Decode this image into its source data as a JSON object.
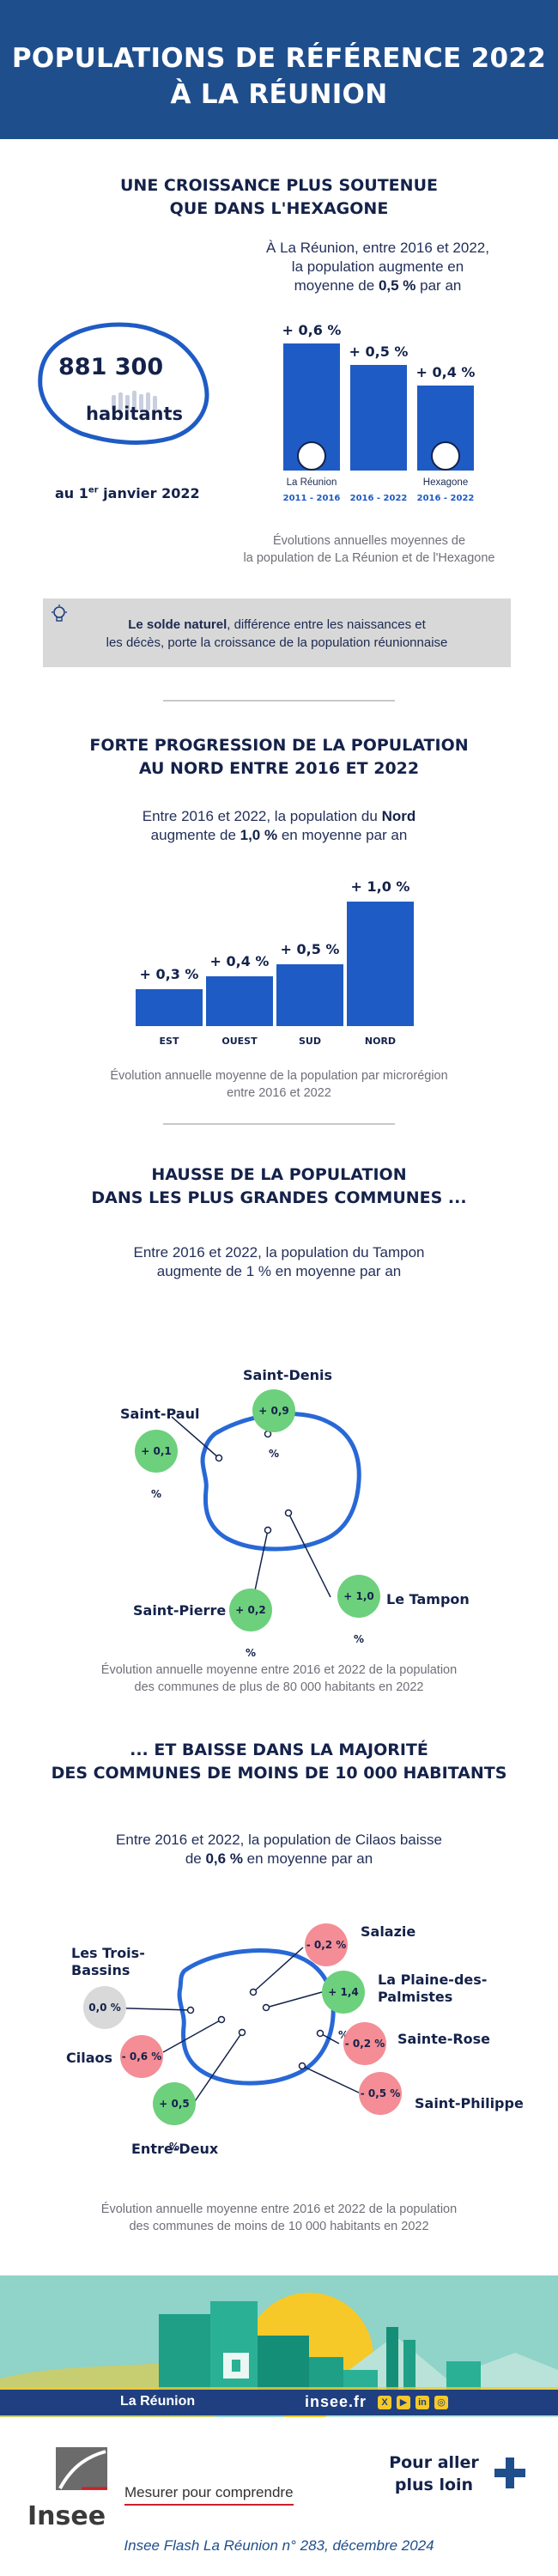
{
  "header": {
    "title_line1": "POPULATIONS DE RÉFÉRENCE 2022",
    "title_line2": "À LA RÉUNION"
  },
  "section1": {
    "title_line1": "UNE CROISSANCE PLUS SOUTENUE",
    "title_line2": "QUE DANS L'HEXAGONE",
    "lead_line1": "À La Réunion, entre 2016 et 2022,",
    "lead_line2": "la population augmente en",
    "lead_line3_pre": "moyenne de ",
    "lead_line3_bold": "0,5 %",
    "lead_line3_post": " par an",
    "population_value": "881 300",
    "population_unit": "habitants",
    "date_pre": "au 1",
    "date_sup": "er",
    "date_post": "  janvier 2022",
    "caption_line1": "Évolutions annuelles moyennes de",
    "caption_line2": "la population de La Réunion et de l'Hexagone"
  },
  "chart_data": [
    {
      "type": "bar",
      "categories": [
        "La Réunion 2011 - 2016",
        "La Réunion 2016 - 2022",
        "Hexagone 2016 - 2022"
      ],
      "values": [
        0.6,
        0.5,
        0.4
      ],
      "value_labels": [
        "+ 0,6 %",
        "+ 0,5 %",
        "+ 0,4 %"
      ],
      "group_labels": [
        "La Réunion",
        "Hexagone"
      ],
      "period_labels": [
        "2011 - 2016",
        "2016 - 2022",
        "2016 - 2022"
      ],
      "ylim": [
        0,
        0.6
      ],
      "colors": [
        "#1f5bc4"
      ]
    },
    {
      "type": "bar",
      "categories": [
        "EST",
        "OUEST",
        "SUD",
        "NORD"
      ],
      "values": [
        0.3,
        0.4,
        0.5,
        1.0
      ],
      "value_labels": [
        "+ 0,3 %",
        "+ 0,4 %",
        "+ 0,5 %",
        "+ 1,0 %"
      ],
      "ylim": [
        0,
        1.0
      ],
      "colors": [
        "#1f5bc4"
      ]
    }
  ],
  "infobox": {
    "bold": "Le solde naturel",
    "text_line1_post": ", différence entre les naissances et",
    "text_line2": "les décès, porte la croissance de la population réunionnaise"
  },
  "section2": {
    "title_line1": "FORTE PROGRESSION DE LA POPULATION",
    "title_line2": "AU NORD ENTRE 2016 ET 2022",
    "lead_line1_pre": "Entre 2016 et 2022, la population du ",
    "lead_line1_bold": "Nord",
    "lead_line2_pre": "augmente de ",
    "lead_line2_bold": "1,0 %",
    "lead_line2_post": " en moyenne par an",
    "caption_line1": "Évolution annuelle moyenne de la population par microrégion",
    "caption_line2": "entre 2016 et 2022"
  },
  "section3": {
    "title_line1": "HAUSSE DE LA POPULATION",
    "title_line2": "DANS LES PLUS GRANDES COMMUNES ...",
    "lead_line1": "Entre 2016 et 2022, la population du Tampon",
    "lead_line2": "augmente de 1 % en moyenne par an",
    "cities": [
      {
        "name": "Saint-Denis",
        "value": "+ 0,9 %"
      },
      {
        "name": "Saint-Paul",
        "value": "+ 0,1 %"
      },
      {
        "name": "Saint-Pierre",
        "value": "+ 0,2 %"
      },
      {
        "name": "Le Tampon",
        "value": "+ 1,0 %"
      }
    ],
    "caption_line1": "Évolution annuelle moyenne entre 2016 et 2022 de la population",
    "caption_line2": "des communes de plus de 80 000 habitants en 2022"
  },
  "section4": {
    "title_line1": "... ET BAISSE DANS LA MAJORITÉ",
    "title_line2": "DES COMMUNES DE MOINS DE 10 000 HABITANTS",
    "lead_line1": "Entre 2016 et 2022, la population de Cilaos baisse",
    "lead_line2_pre": "de ",
    "lead_line2_bold": "0,6 %",
    "lead_line2_post": " en moyenne par an",
    "cities": [
      {
        "name": "Salazie",
        "value": "- 0,2 %"
      },
      {
        "name_line1": "Les Trois-",
        "name_line2": "Bassins",
        "value": "0,0 %"
      },
      {
        "name_line1": "La Plaine-des-",
        "name_line2": "Palmistes",
        "value": "+ 1,4 %"
      },
      {
        "name": "Cilaos",
        "value": "- 0,6 %"
      },
      {
        "name": "Sainte-Rose",
        "value": "- 0,2 %"
      },
      {
        "name": "Entre-Deux",
        "value": "+ 0,5 %"
      },
      {
        "name": "Saint-Philippe",
        "value": "- 0,5 %"
      }
    ],
    "caption_line1": "Évolution annuelle moyenne entre 2016 et 2022 de la population",
    "caption_line2": "des communes de moins de 10 000 habitants en 2022"
  },
  "footer": {
    "region": "La Réunion",
    "site": "insee.fr",
    "logo_text": "Insee",
    "tagline": "Mesurer pour comprendre",
    "cta_line1": "Pour aller",
    "cta_line2": "plus loin",
    "publication": "Insee Flash La Réunion n° 283, décembre 2024"
  }
}
